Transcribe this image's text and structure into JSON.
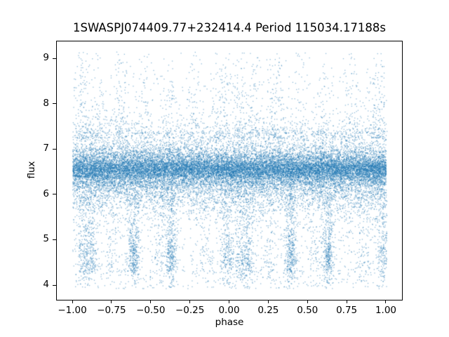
{
  "figure": {
    "title": "1SWASPJ074409.77+232414.4 Period 115034.17188s",
    "xlabel": "phase",
    "ylabel": "flux"
  },
  "chart_data": {
    "type": "scatter",
    "title": "1SWASPJ074409.77+232414.4 Period 115034.17188s",
    "xlabel": "phase",
    "ylabel": "flux",
    "xlim": [
      -1.103,
      1.103
    ],
    "ylim": [
      3.675,
      9.387
    ],
    "xticks": [
      -1.0,
      -0.75,
      -0.5,
      -0.25,
      0.0,
      0.25,
      0.5,
      0.75,
      1.0
    ],
    "xtick_labels": [
      "−1.00",
      "−0.75",
      "−0.50",
      "−0.25",
      "0.00",
      "0.25",
      "0.50",
      "0.75",
      "1.00"
    ],
    "yticks": [
      4,
      5,
      6,
      7,
      8,
      9
    ],
    "ytick_labels": [
      "4",
      "5",
      "6",
      "7",
      "8",
      "9"
    ],
    "grid": false,
    "legend": null,
    "marker_color": "#1f77b4",
    "marker_alpha": 0.5,
    "marker_size_px": 1.3,
    "seed": 987123,
    "n_points_total_approx": 30000,
    "phase_range": [
      -1.0,
      1.0
    ],
    "flux_range": [
      3.93,
      9.15
    ],
    "band_center_flux": 6.55,
    "distribution": {
      "phase_clip": 1.005,
      "core": [
        {
          "n": 14000,
          "mean": 6.56,
          "sigma": 0.16
        },
        {
          "n": 5000,
          "mean": 6.52,
          "sigma": 0.3
        }
      ],
      "fade_low": {
        "n": 3000,
        "base": 6.3,
        "sigma": 0.42
      },
      "fade_high": {
        "n": 2300,
        "base": 6.82,
        "sigma": 0.34
      },
      "sparse_low_uniform": {
        "n": 650,
        "fmin": 4.25,
        "fmax": 5.9
      },
      "bottom_row": {
        "n": 300,
        "fmin": 3.93,
        "fmax": 4.35
      },
      "sparse_high": {
        "n": 550,
        "fmin": 7.35,
        "fmax": 8.7,
        "pow": 2.2
      },
      "low_streaks": [
        {
          "c": -0.93,
          "n": 220,
          "s": 0.022
        },
        {
          "c": -0.88,
          "n": 200,
          "s": 0.02
        },
        {
          "c": -0.75,
          "n": 70,
          "s": 0.025
        },
        {
          "c": -0.61,
          "n": 420,
          "s": 0.02
        },
        {
          "c": -0.45,
          "n": 90,
          "s": 0.028
        },
        {
          "c": -0.37,
          "n": 380,
          "s": 0.018
        },
        {
          "c": -0.15,
          "n": 60,
          "s": 0.03
        },
        {
          "c": -0.015,
          "n": 260,
          "s": 0.022
        },
        {
          "c": 0.07,
          "n": 180,
          "s": 0.022
        },
        {
          "c": 0.12,
          "n": 200,
          "s": 0.02
        },
        {
          "c": 0.25,
          "n": 70,
          "s": 0.025
        },
        {
          "c": 0.39,
          "n": 420,
          "s": 0.02
        },
        {
          "c": 0.55,
          "n": 60,
          "s": 0.028
        },
        {
          "c": 0.63,
          "n": 400,
          "s": 0.018
        },
        {
          "c": 0.85,
          "n": 100,
          "s": 0.03
        },
        {
          "c": 0.985,
          "n": 260,
          "s": 0.022
        }
      ],
      "high_streaks": [
        {
          "c": -0.93,
          "n": 110,
          "s": 0.03
        },
        {
          "c": -0.84,
          "n": 70,
          "s": 0.03
        },
        {
          "c": -0.7,
          "n": 110,
          "s": 0.028
        },
        {
          "c": -0.55,
          "n": 50,
          "s": 0.03
        },
        {
          "c": -0.38,
          "n": 60,
          "s": 0.03
        },
        {
          "c": -0.23,
          "n": 80,
          "s": 0.03
        },
        {
          "c": -0.05,
          "n": 130,
          "s": 0.035
        },
        {
          "c": 0.07,
          "n": 90,
          "s": 0.03
        },
        {
          "c": 0.16,
          "n": 70,
          "s": 0.03
        },
        {
          "c": 0.3,
          "n": 110,
          "s": 0.028
        },
        {
          "c": 0.45,
          "n": 50,
          "s": 0.03
        },
        {
          "c": 0.62,
          "n": 60,
          "s": 0.03
        },
        {
          "c": 0.77,
          "n": 80,
          "s": 0.03
        },
        {
          "c": 0.95,
          "n": 130,
          "s": 0.035
        }
      ],
      "low_streak_flux": {
        "mix_gauss_p": 0.45,
        "gauss_mean": 4.6,
        "gauss_sigma": 0.3,
        "umin": 4.3,
        "umax": 6.05,
        "clip_min": 3.93,
        "clip_max": 6.1
      },
      "high_streak_flux": {
        "base": 7.25,
        "range": 1.9,
        "pow": 1.8,
        "cap": 9.15
      }
    }
  }
}
